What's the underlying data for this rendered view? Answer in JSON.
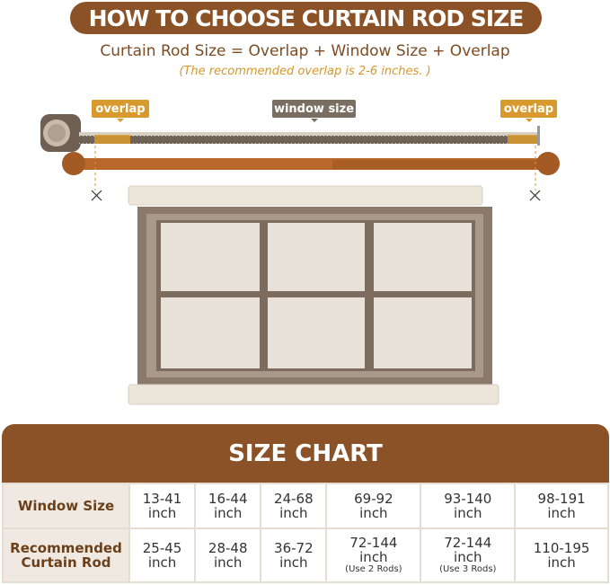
{
  "title": "HOW TO CHOOSE CURTAIN ROD SIZE",
  "formula": "Curtain Rod Size = Overlap + Window Size + Overlap",
  "note": "(The recommended overlap is 2-6 inches. )",
  "labels": {
    "overlap_left": "overlap",
    "window_size": "window size",
    "overlap_right": "overlap"
  },
  "colors": {
    "brand_brown": "#8a5226",
    "accent_orange": "#d89a2e",
    "gray_label": "#7a6d62"
  },
  "size_chart": {
    "title": "SIZE CHART",
    "rows": [
      {
        "header": "Window Size",
        "cells": [
          {
            "value": "13-41",
            "unit": "inch"
          },
          {
            "value": "16-44",
            "unit": "inch"
          },
          {
            "value": "24-68",
            "unit": "inch"
          },
          {
            "value": "69-92",
            "unit": "inch"
          },
          {
            "value": "93-140",
            "unit": "inch"
          },
          {
            "value": "98-191",
            "unit": "inch"
          }
        ]
      },
      {
        "header_line1": "Recommended",
        "header_line2": "Curtain Rod",
        "cells": [
          {
            "value": "25-45",
            "unit": "inch"
          },
          {
            "value": "28-48",
            "unit": "inch"
          },
          {
            "value": "36-72",
            "unit": "inch"
          },
          {
            "value": "72-144",
            "unit": "inch",
            "note": "(Use 2 Rods)"
          },
          {
            "value": "72-144",
            "unit": "inch",
            "note": "(Use 3 Rods)"
          },
          {
            "value": "110-195",
            "unit": "inch"
          }
        ]
      }
    ]
  }
}
